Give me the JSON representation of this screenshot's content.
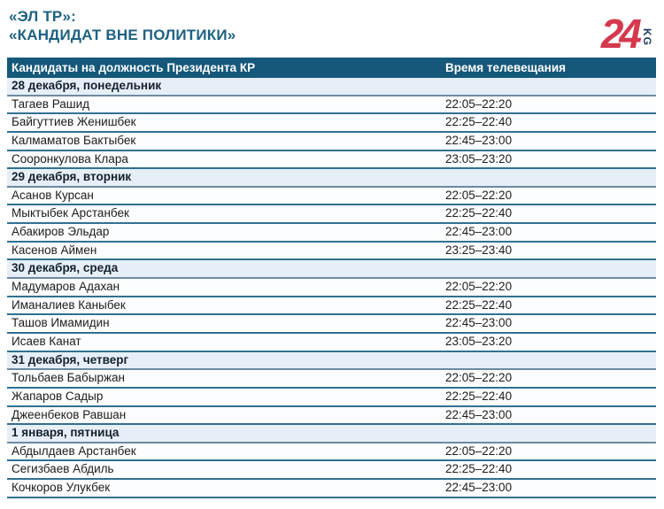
{
  "header": {
    "title_line1": "«ЭЛ ТР»:",
    "title_line2": "«КАНДИДАТ ВНЕ ПОЛИТИКИ»",
    "logo": {
      "number": "24",
      "suffix": "KG"
    }
  },
  "colors": {
    "title_text": "#1d6181",
    "table_header_bg": "#15587a",
    "table_header_text": "#ffffff",
    "section_bg": "#e6eff7",
    "section_text": "#14222c",
    "section_border": "#6e8aa2",
    "row_bg": "#fbfdfe",
    "row_text": "#1d1d1b",
    "row_border": "#31718f",
    "logo_red": "#d4394e",
    "logo_navy": "#1d3b63"
  },
  "chart_data": {
    "type": "table",
    "title": "«ЭЛ ТР»: «КАНДИДАТ ВНЕ ПОЛИТИКИ»",
    "columns": [
      "Кандидаты на должность Президента КР",
      "Время телевещания"
    ],
    "sections": [
      {
        "date": "28 декабря, понедельник",
        "rows": [
          {
            "name": "Тагаев Рашид",
            "time": "22:05–22:20"
          },
          {
            "name": "Байгуттиев Женишбек",
            "time": "22:25–22:40"
          },
          {
            "name": "Калмаматов Бактыбек",
            "time": "22:45–23:00"
          },
          {
            "name": "Сооронкулова Клара",
            "time": "23:05–23:20"
          }
        ]
      },
      {
        "date": "29 декабря, вторник",
        "rows": [
          {
            "name": "Асанов Курсан",
            "time": "22:05–22:20"
          },
          {
            "name": "Мыктыбек Арстанбек",
            "time": "22:25–22:40"
          },
          {
            "name": "Абакиров Эльдар",
            "time": "22:45–23:00"
          },
          {
            "name": "Касенов Аймен",
            "time": "23:25–23:40"
          }
        ]
      },
      {
        "date": "30 декабря, среда",
        "rows": [
          {
            "name": "Мадумаров Адахан",
            "time": "22:05–22:20"
          },
          {
            "name": "Иманалиев Каныбек",
            "time": "22:25–22:40"
          },
          {
            "name": "Ташов Имамидин",
            "time": "22:45–23:00"
          },
          {
            "name": "Исаев Канат",
            "time": "23:05–23:20"
          }
        ]
      },
      {
        "date": "31 декабря, четверг",
        "rows": [
          {
            "name": "Тольбаев Бабыржан",
            "time": "22:05–22:20"
          },
          {
            "name": "Жапаров Садыр",
            "time": "22:25–22:40"
          },
          {
            "name": "Джеенбеков Равшан",
            "time": "22:45–23:00"
          }
        ]
      },
      {
        "date": "1 января, пятница",
        "rows": [
          {
            "name": "Абдылдаев Арстанбек",
            "time": "22:05–22:20"
          },
          {
            "name": "Сегизбаев Абдиль",
            "time": "22:25–22:40"
          },
          {
            "name": "Кочкоров Улукбек",
            "time": "22:45–23:00"
          }
        ]
      }
    ]
  }
}
